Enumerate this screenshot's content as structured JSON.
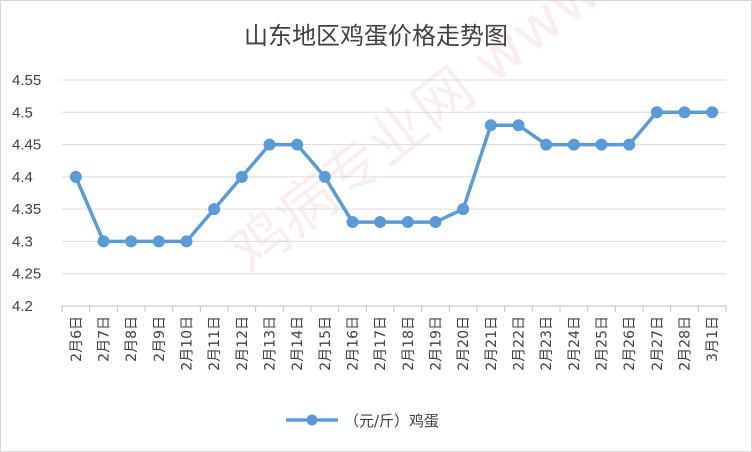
{
  "chart_data": {
    "type": "line",
    "title": "山东地区鸡蛋价格走势图",
    "categories": [
      "2月6日",
      "2月7日",
      "2月8日",
      "2月9日",
      "2月10日",
      "2月11日",
      "2月12日",
      "2月13日",
      "2月14日",
      "2月15日",
      "2月16日",
      "2月17日",
      "2月18日",
      "2月19日",
      "2月20日",
      "2月21日",
      "2月22日",
      "2月23日",
      "2月24日",
      "2月25日",
      "2月26日",
      "2月27日",
      "2月28日",
      "3月1日"
    ],
    "series": [
      {
        "name": "（元/斤）鸡蛋",
        "values": [
          4.4,
          4.3,
          4.3,
          4.3,
          4.3,
          4.35,
          4.4,
          4.45,
          4.45,
          4.4,
          4.33,
          4.33,
          4.33,
          4.33,
          4.35,
          4.48,
          4.48,
          4.45,
          4.45,
          4.45,
          4.45,
          4.5,
          4.5,
          4.5
        ]
      }
    ],
    "ylim": [
      4.2,
      4.55
    ],
    "yticks": [
      "4.2",
      "4.25",
      "4.3",
      "4.35",
      "4.4",
      "4.45",
      "4.5",
      "4.55"
    ],
    "grid": true,
    "legend": "bottom",
    "color": "#5b9bd5",
    "watermark": "鸡病专业网 www.jbzyw.com"
  }
}
